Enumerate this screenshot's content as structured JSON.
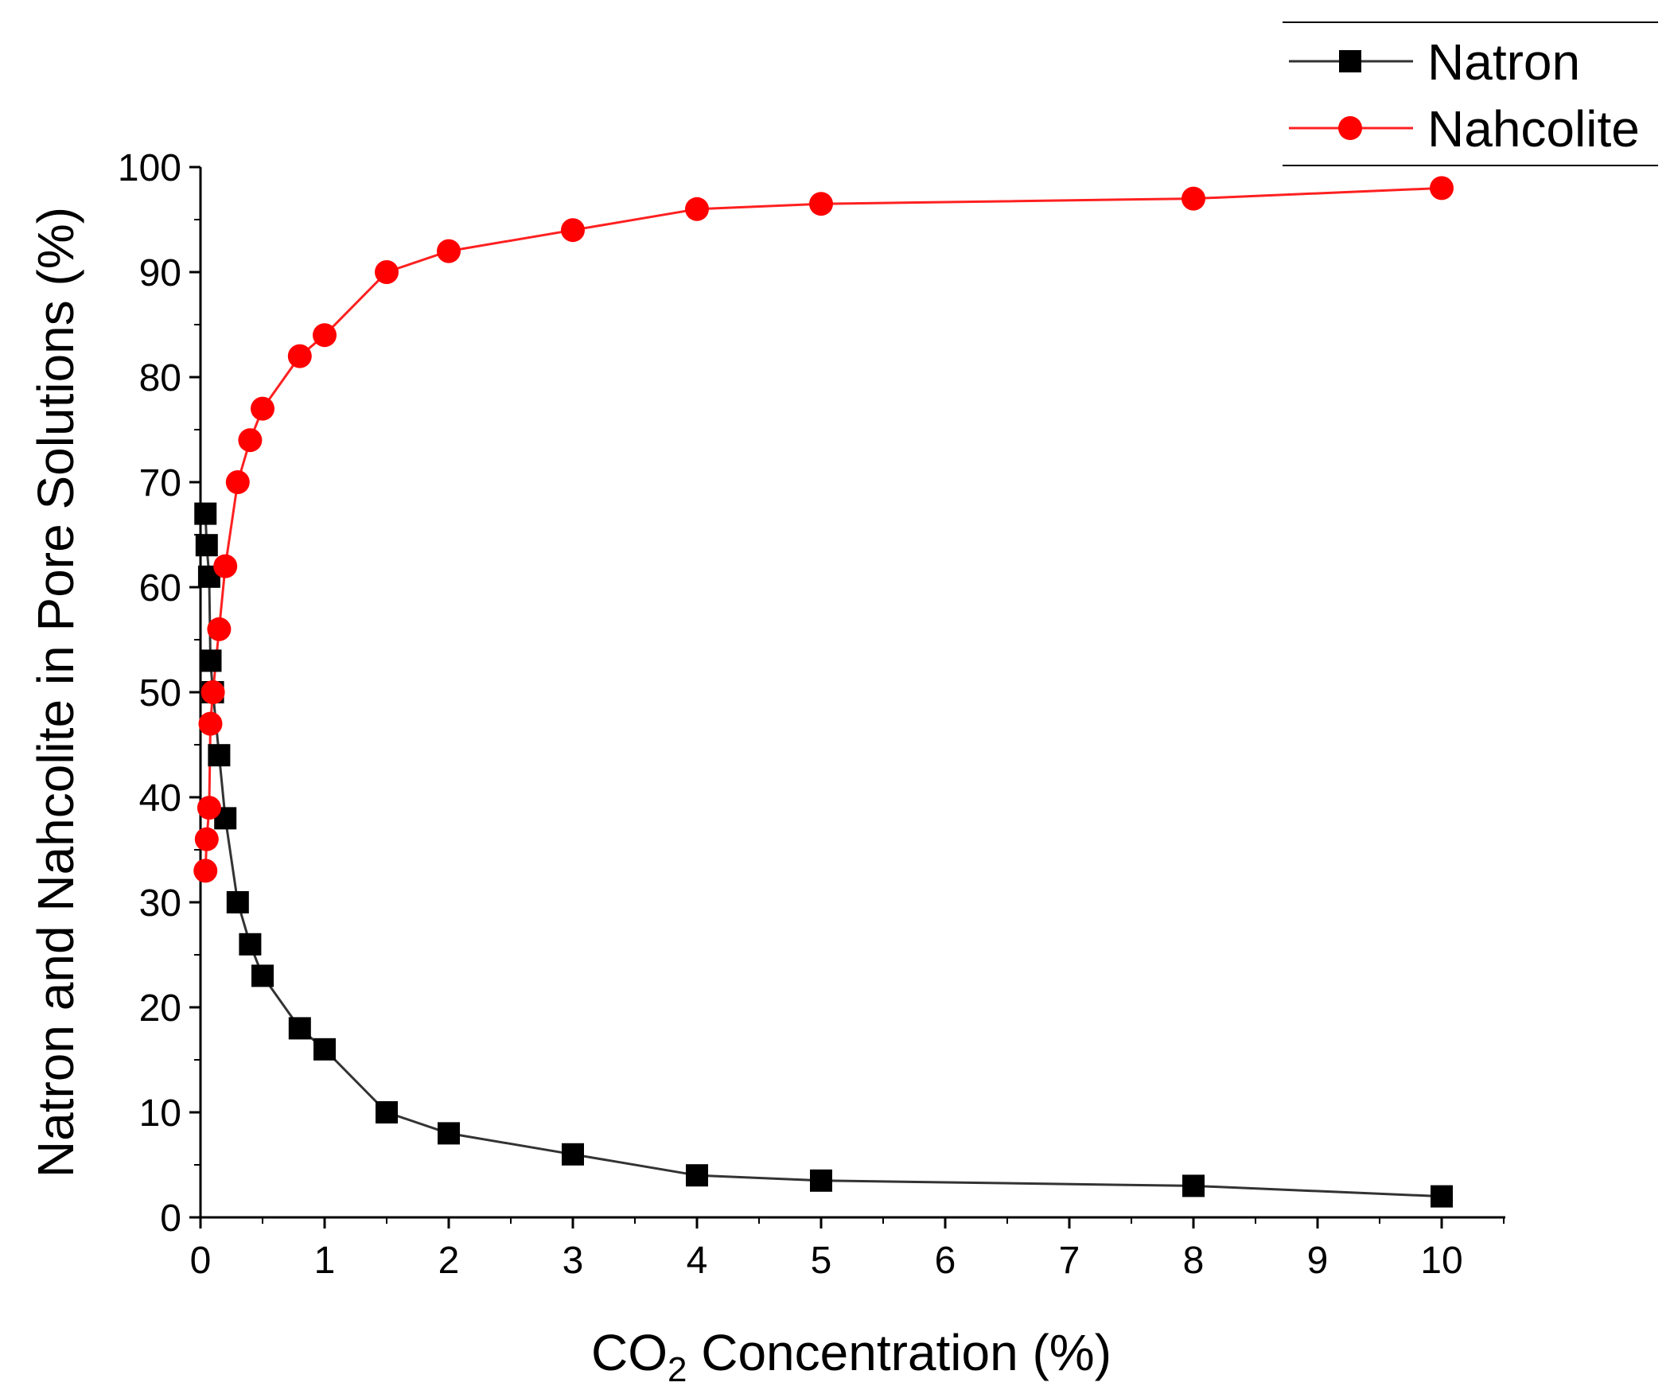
{
  "chart_data": {
    "type": "line",
    "title": "",
    "xlabel": {
      "main": "CO",
      "sub": "2",
      "rest": " Concentration (%)"
    },
    "ylabel": "Natron and Nahcolite in Pore Solutions (%)",
    "xlim": [
      0,
      10.5
    ],
    "ylim": [
      0,
      100
    ],
    "x_ticks": [
      0,
      1,
      2,
      3,
      4,
      5,
      6,
      7,
      8,
      9,
      10
    ],
    "y_ticks": [
      0,
      10,
      20,
      30,
      40,
      50,
      60,
      70,
      80,
      90,
      100
    ],
    "legend_position": "top-right",
    "series": [
      {
        "name": "Natron",
        "color": "#000000",
        "line_color": "#333333",
        "marker": "square",
        "x": [
          0.04,
          0.05,
          0.07,
          0.08,
          0.1,
          0.15,
          0.2,
          0.3,
          0.4,
          0.5,
          0.8,
          1.0,
          1.5,
          2.0,
          3.0,
          4.0,
          5.0,
          8.0,
          10.0
        ],
        "y": [
          67,
          64,
          61,
          53,
          50,
          44,
          38,
          30,
          26,
          23,
          18,
          16,
          10,
          8,
          6,
          4,
          3.5,
          3,
          2
        ]
      },
      {
        "name": "Nahcolite",
        "color": "#ff0000",
        "line_color": "#ff2020",
        "marker": "circle",
        "x": [
          0.04,
          0.05,
          0.07,
          0.08,
          0.1,
          0.15,
          0.2,
          0.3,
          0.4,
          0.5,
          0.8,
          1.0,
          1.5,
          2.0,
          3.0,
          4.0,
          5.0,
          8.0,
          10.0
        ],
        "y": [
          33,
          36,
          39,
          47,
          50,
          56,
          62,
          70,
          74,
          77,
          82,
          84,
          90,
          92,
          94,
          96,
          96.5,
          97,
          98
        ]
      }
    ]
  }
}
